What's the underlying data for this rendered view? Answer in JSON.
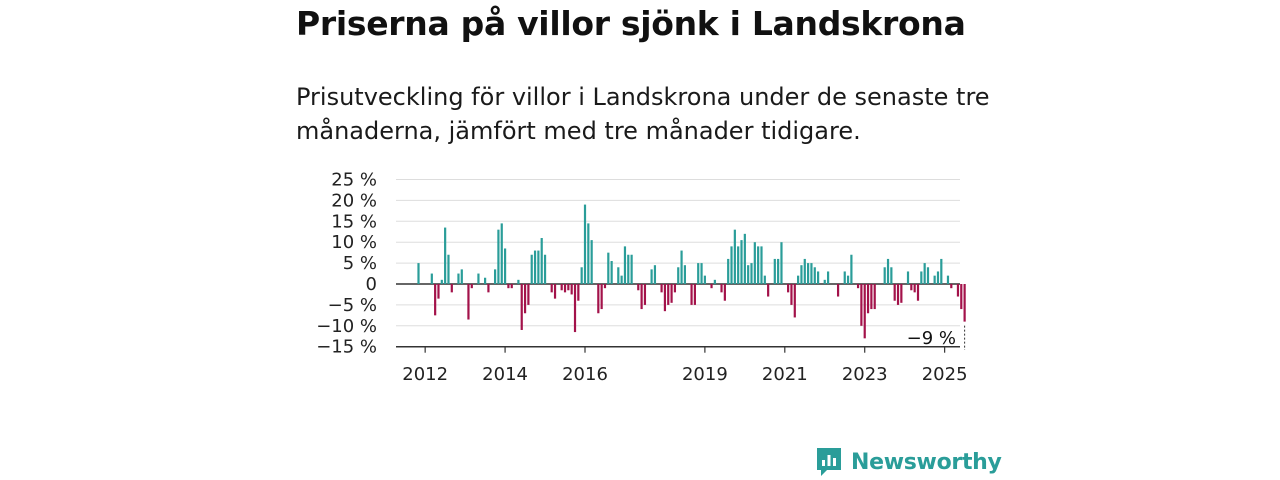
{
  "title": "Priserna på villor sjönk i Landskrona",
  "subtitle": "Prisutveckling för villor i Landskrona under de senaste tre månaderna, jämfört med tre månader tidigare.",
  "logo_text": "Newsworthy",
  "colors": {
    "positive": "#2a9d99",
    "negative": "#a3124a",
    "text": "#111111",
    "grid": "#dddddd",
    "brand": "#2a9d99"
  },
  "chart_data": {
    "type": "bar",
    "title": "",
    "xlabel": "",
    "ylabel": "",
    "ylim": [
      -15,
      25
    ],
    "y_ticks": [
      25,
      20,
      15,
      10,
      5,
      0,
      -5,
      -10,
      -15
    ],
    "y_tick_labels": [
      "25 %",
      "20 %",
      "15 %",
      "10 %",
      "5 %",
      "0",
      "−5 %",
      "−10 %",
      "−15 %"
    ],
    "x_ticks": [
      "2012",
      "2014",
      "2016",
      "2019",
      "2021",
      "2023",
      "2025"
    ],
    "start_month": "2011-11",
    "annotation": {
      "text": "−9 %",
      "value": -9
    },
    "values": [
      5,
      0,
      0,
      0,
      2.5,
      -7.5,
      -3.5,
      1,
      13.5,
      7,
      -2,
      0,
      2.5,
      3.5,
      0,
      -8.5,
      -1,
      0,
      2.5,
      0,
      1.5,
      -2,
      0,
      3.5,
      13,
      14.5,
      8.5,
      -1,
      -1,
      0,
      1,
      -11,
      -7,
      -5,
      7,
      8,
      8,
      11,
      7,
      0,
      -2,
      -3.5,
      0,
      -1.5,
      -2,
      -1.5,
      -2.5,
      -11.5,
      -4,
      4,
      19,
      14.5,
      10.5,
      0,
      -7,
      -6,
      -1,
      7.5,
      5.5,
      0,
      4,
      2,
      9,
      7,
      7,
      0,
      -1.5,
      -6,
      -5,
      0,
      3.5,
      4.5,
      0,
      -2,
      -6.5,
      -5,
      -4.5,
      -2,
      4,
      8,
      4.5,
      0,
      -5,
      -5,
      5,
      5,
      2,
      0,
      -1,
      1,
      0,
      -2,
      -4,
      6,
      9,
      13,
      9,
      10.5,
      12,
      4.5,
      5,
      10,
      9,
      9,
      2,
      -3,
      0,
      6,
      6,
      10,
      0,
      -2,
      -5,
      -8,
      2,
      4.5,
      6,
      5,
      5,
      4,
      3,
      0,
      1,
      3,
      0,
      0,
      -3,
      0,
      3,
      2,
      7,
      0,
      -1,
      -10,
      -13,
      -7,
      -6,
      -6,
      0,
      0,
      4,
      6,
      4,
      -4,
      -5,
      -4.5,
      0,
      3,
      -1.5,
      -2,
      -4,
      3,
      5,
      4,
      0,
      2,
      3,
      6,
      0,
      2,
      -1,
      0,
      -3,
      -6,
      -9
    ]
  }
}
